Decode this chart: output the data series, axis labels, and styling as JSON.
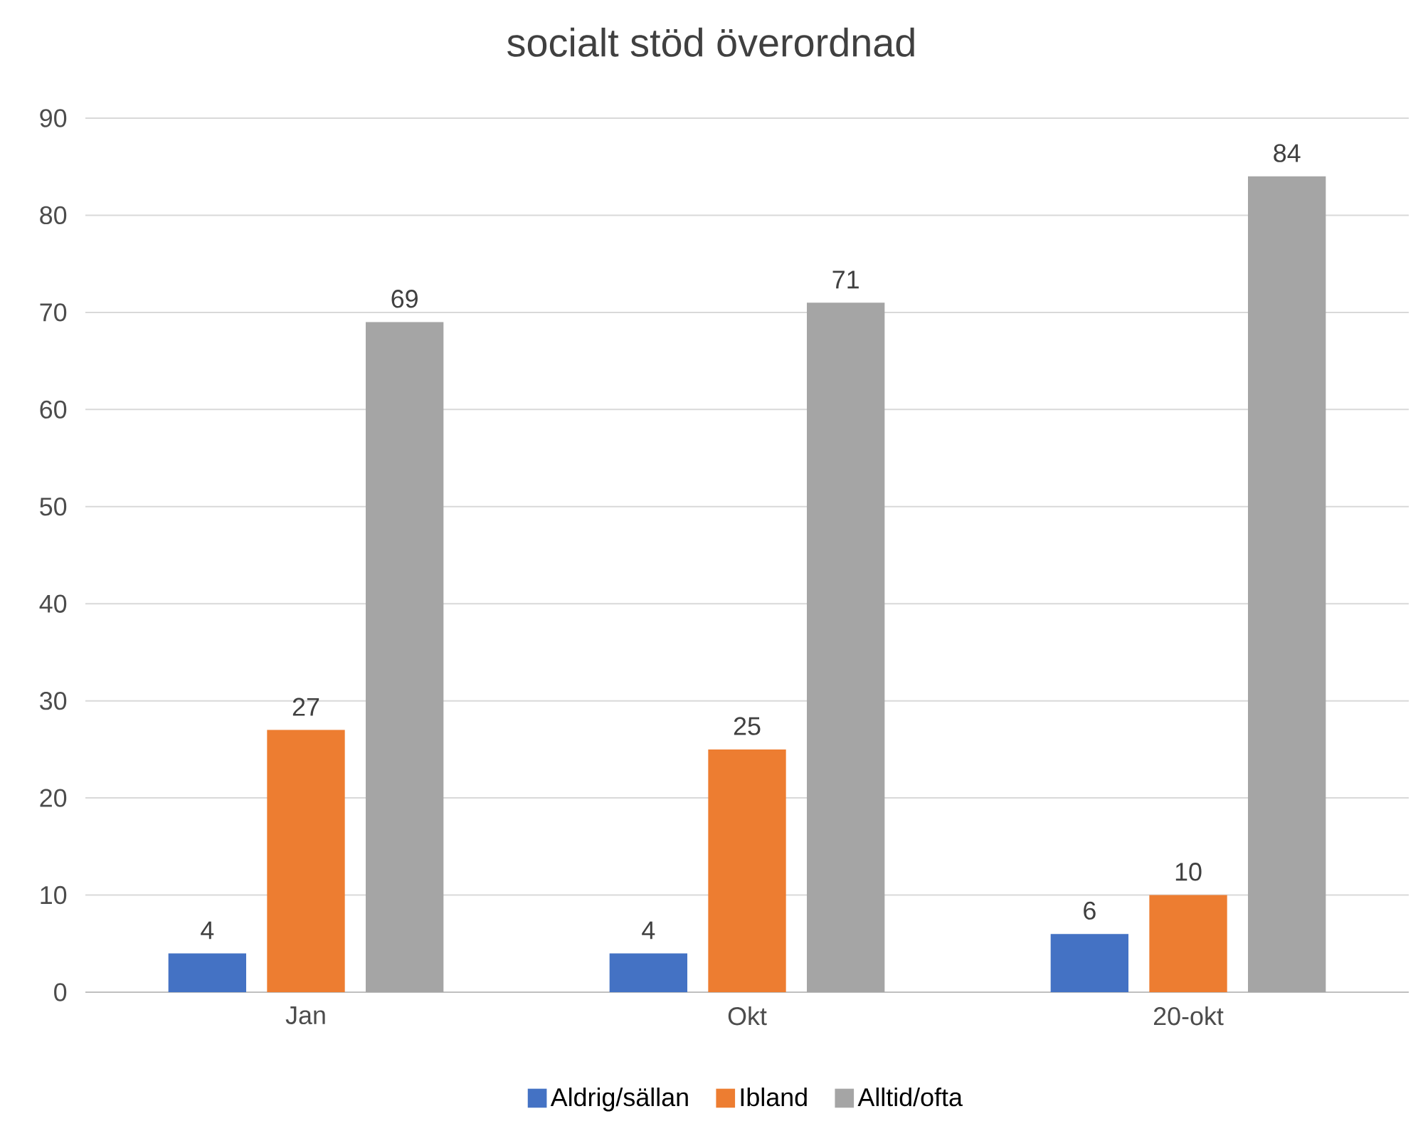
{
  "chart_data": {
    "type": "bar",
    "title": "socialt stöd överordnad",
    "categories": [
      "Jan",
      "Okt",
      "20-okt"
    ],
    "series": [
      {
        "name": "Aldrig/sällan",
        "color": "#4472c4",
        "values": [
          4,
          4,
          6
        ]
      },
      {
        "name": "Ibland",
        "color": "#ed7d31",
        "values": [
          27,
          25,
          10
        ]
      },
      {
        "name": "Alltid/ofta",
        "color": "#a5a5a5",
        "values": [
          69,
          71,
          84
        ]
      }
    ],
    "ylim": [
      0,
      90
    ],
    "yticks": [
      0,
      10,
      20,
      30,
      40,
      50,
      60,
      70,
      80,
      90
    ],
    "grid": "y",
    "legend": "bottom",
    "data_labels": true
  }
}
